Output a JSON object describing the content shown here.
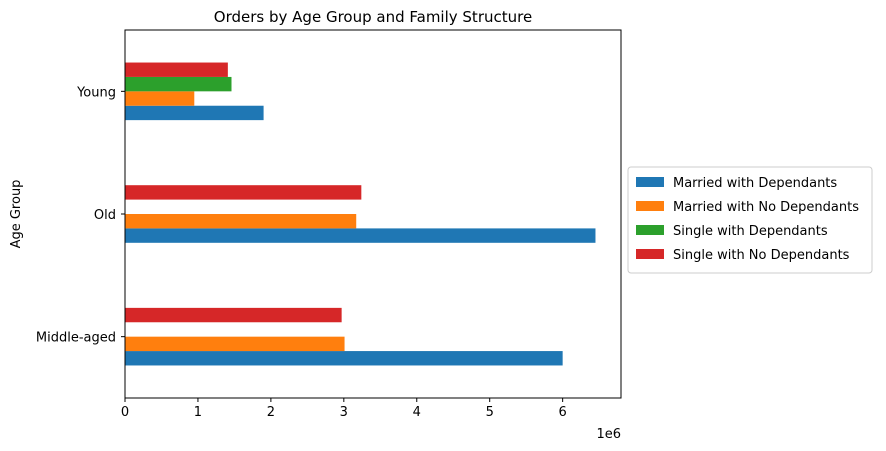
{
  "chart_data": {
    "type": "bar",
    "orientation": "horizontal",
    "title": "Orders by Age Group and Family Structure",
    "xlabel": "",
    "ylabel": "Age Group",
    "x_offset_label": "1e6",
    "x_scale": 1000000,
    "xlim": [
      0,
      6800000
    ],
    "x_ticks": [
      0,
      1,
      2,
      3,
      4,
      5,
      6
    ],
    "categories": [
      "Middle-aged",
      "Old",
      "Young"
    ],
    "series": [
      {
        "name": "Married with Dependants",
        "color": "#1f77b4",
        "values": [
          6000000,
          6450000,
          1900000
        ]
      },
      {
        "name": "Married with No Dependants",
        "color": "#ff7f0e",
        "values": [
          3010000,
          3170000,
          950000
        ]
      },
      {
        "name": "Single with Dependants",
        "color": "#2ca02c",
        "values": [
          null,
          null,
          1460000
        ]
      },
      {
        "name": "Single with No Dependants",
        "color": "#d62728",
        "values": [
          2970000,
          3240000,
          1410000
        ]
      }
    ],
    "legend_position": "center-right",
    "grid": false
  }
}
